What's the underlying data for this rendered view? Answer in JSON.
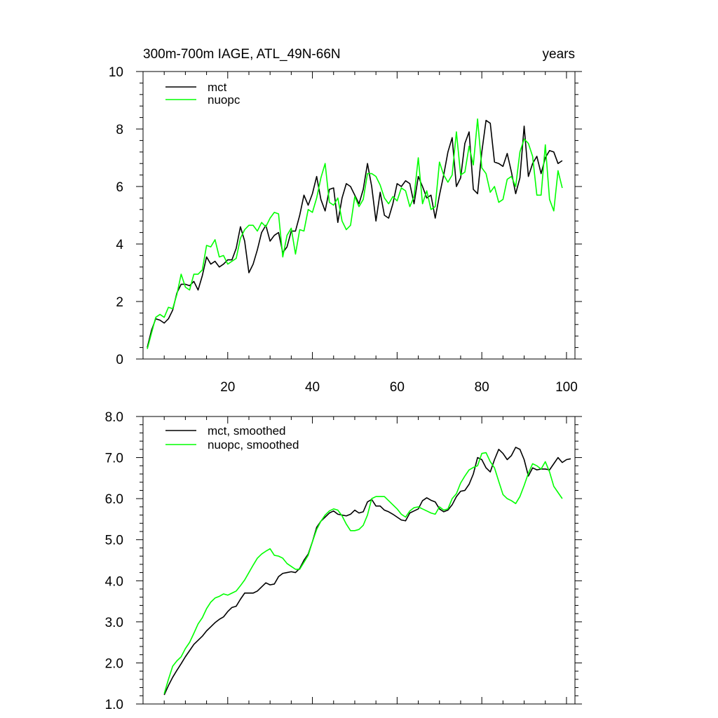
{
  "chart_data": [
    {
      "type": "line",
      "title": "300m-700m IAGE, ATL_49N-66N",
      "right_label": "years",
      "xlim": [
        0,
        102
      ],
      "ylim": [
        0,
        10
      ],
      "x_ticks": [
        20,
        40,
        60,
        80,
        100
      ],
      "x_tick_labels": [
        "20",
        "40",
        "60",
        "80",
        "100"
      ],
      "y_ticks": [
        0,
        2,
        4,
        6,
        8,
        10
      ],
      "y_tick_labels": [
        "0",
        "2",
        "4",
        "6",
        "8",
        "10"
      ],
      "x_start": 1,
      "legend_position": "top-left",
      "grid": false,
      "series": [
        {
          "name": "mct",
          "color": "#000000",
          "values": [
            0.4,
            1.0,
            1.4,
            1.35,
            1.25,
            1.4,
            1.7,
            2.3,
            2.6,
            2.6,
            2.55,
            2.7,
            2.4,
            2.9,
            3.55,
            3.3,
            3.4,
            3.2,
            3.3,
            3.45,
            3.45,
            3.85,
            4.6,
            4.1,
            3.0,
            3.3,
            3.8,
            4.4,
            4.65,
            4.1,
            4.3,
            4.4,
            3.7,
            3.9,
            4.45,
            4.45,
            5.0,
            5.7,
            5.35,
            5.75,
            6.35,
            5.55,
            5.15,
            5.9,
            5.95,
            4.75,
            5.6,
            6.1,
            6.0,
            5.7,
            5.4,
            5.9,
            6.8,
            6.0,
            4.8,
            5.8,
            5.0,
            4.9,
            5.4,
            6.1,
            6.0,
            6.2,
            6.1,
            5.4,
            6.35,
            6.0,
            5.6,
            5.7,
            4.9,
            5.7,
            6.4,
            7.2,
            7.7,
            6.0,
            6.3,
            7.5,
            7.9,
            5.9,
            5.75,
            7.2,
            8.3,
            8.2,
            6.85,
            6.8,
            6.7,
            7.15,
            6.5,
            5.75,
            6.3,
            8.1,
            6.35,
            6.8,
            7.05,
            6.45,
            7.0,
            7.25,
            7.2,
            6.8,
            6.9
          ]
        },
        {
          "name": "nuopc",
          "color": "#00ff00",
          "values": [
            0.35,
            0.9,
            1.45,
            1.55,
            1.45,
            1.8,
            1.75,
            2.25,
            2.95,
            2.5,
            2.4,
            2.95,
            2.95,
            3.1,
            3.95,
            3.9,
            4.15,
            3.55,
            3.6,
            3.3,
            3.4,
            3.5,
            4.2,
            4.5,
            4.65,
            4.65,
            4.45,
            4.75,
            4.6,
            4.9,
            5.1,
            5.05,
            3.55,
            4.3,
            4.55,
            3.65,
            4.5,
            4.45,
            5.2,
            5.1,
            5.6,
            6.3,
            6.8,
            5.45,
            5.35,
            5.6,
            4.8,
            4.5,
            4.65,
            5.65,
            5.3,
            5.55,
            6.45,
            6.45,
            6.35,
            6.05,
            5.6,
            5.4,
            5.65,
            5.5,
            5.95,
            5.85,
            5.3,
            5.65,
            7.0,
            5.4,
            5.85,
            5.2,
            5.3,
            6.85,
            6.4,
            6.15,
            6.4,
            7.9,
            6.4,
            6.5,
            7.4,
            6.75,
            8.35,
            6.65,
            6.45,
            5.8,
            6.0,
            5.45,
            5.55,
            6.25,
            6.35,
            6.0,
            7.2,
            7.65,
            7.5,
            7.05,
            5.7,
            5.7,
            7.45,
            5.55,
            5.15,
            6.55,
            5.95
          ]
        }
      ]
    },
    {
      "type": "line",
      "xlim": [
        0,
        102
      ],
      "ylim": [
        1.0,
        8.0
      ],
      "x_ticks": [
        20,
        40,
        60,
        80,
        100
      ],
      "y_ticks": [
        1.0,
        2.0,
        3.0,
        4.0,
        5.0,
        6.0,
        7.0,
        8.0
      ],
      "y_tick_labels": [
        "1.0",
        "2.0",
        "3.0",
        "4.0",
        "5.0",
        "6.0",
        "7.0",
        "8.0"
      ],
      "x_start": 5,
      "legend_position": "top-left",
      "grid": false,
      "series": [
        {
          "name": "mct, smoothed",
          "color": "#000000",
          "values": [
            1.22,
            1.45,
            1.65,
            1.82,
            1.98,
            2.15,
            2.3,
            2.45,
            2.55,
            2.65,
            2.78,
            2.88,
            2.98,
            3.06,
            3.12,
            3.25,
            3.35,
            3.38,
            3.55,
            3.7,
            3.7,
            3.7,
            3.75,
            3.85,
            3.95,
            3.9,
            3.92,
            4.1,
            4.18,
            4.2,
            4.22,
            4.2,
            4.3,
            4.5,
            4.65,
            4.95,
            5.3,
            5.45,
            5.55,
            5.65,
            5.7,
            5.62,
            5.6,
            5.58,
            5.62,
            5.72,
            5.65,
            5.68,
            5.92,
            5.98,
            5.82,
            5.82,
            5.72,
            5.68,
            5.62,
            5.55,
            5.48,
            5.46,
            5.65,
            5.7,
            5.75,
            5.95,
            6.02,
            5.96,
            5.92,
            5.75,
            5.68,
            5.72,
            5.85,
            6.05,
            6.18,
            6.2,
            6.35,
            6.6,
            7.0,
            6.95,
            6.75,
            6.65,
            6.95,
            7.2,
            7.1,
            6.95,
            7.05,
            7.25,
            7.2,
            6.95,
            6.55,
            6.75,
            6.7,
            6.72,
            6.72,
            6.7,
            6.85,
            7.0,
            6.88,
            6.95,
            6.97
          ]
        },
        {
          "name": "nuopc, smoothed",
          "color": "#00ff00",
          "values": [
            1.25,
            1.6,
            1.92,
            2.05,
            2.15,
            2.35,
            2.5,
            2.72,
            2.95,
            3.1,
            3.32,
            3.48,
            3.58,
            3.62,
            3.68,
            3.65,
            3.7,
            3.75,
            3.88,
            4.02,
            4.2,
            4.38,
            4.55,
            4.65,
            4.72,
            4.78,
            4.62,
            4.6,
            4.55,
            4.42,
            4.35,
            4.28,
            4.28,
            4.45,
            4.62,
            4.95,
            5.25,
            5.45,
            5.6,
            5.7,
            5.75,
            5.72,
            5.58,
            5.38,
            5.22,
            5.22,
            5.25,
            5.35,
            5.6,
            6.0,
            6.05,
            6.05,
            6.05,
            5.95,
            5.85,
            5.75,
            5.62,
            5.55,
            5.7,
            5.78,
            5.8,
            5.75,
            5.7,
            5.65,
            5.62,
            5.8,
            5.72,
            5.75,
            6.0,
            6.12,
            6.38,
            6.55,
            6.7,
            6.76,
            6.8,
            7.1,
            7.12,
            6.9,
            6.75,
            6.42,
            6.1,
            6.0,
            5.95,
            5.88,
            6.05,
            6.32,
            6.62,
            6.85,
            6.8,
            6.72,
            6.9,
            6.65,
            6.3,
            6.15,
            6.0
          ]
        }
      ]
    }
  ]
}
